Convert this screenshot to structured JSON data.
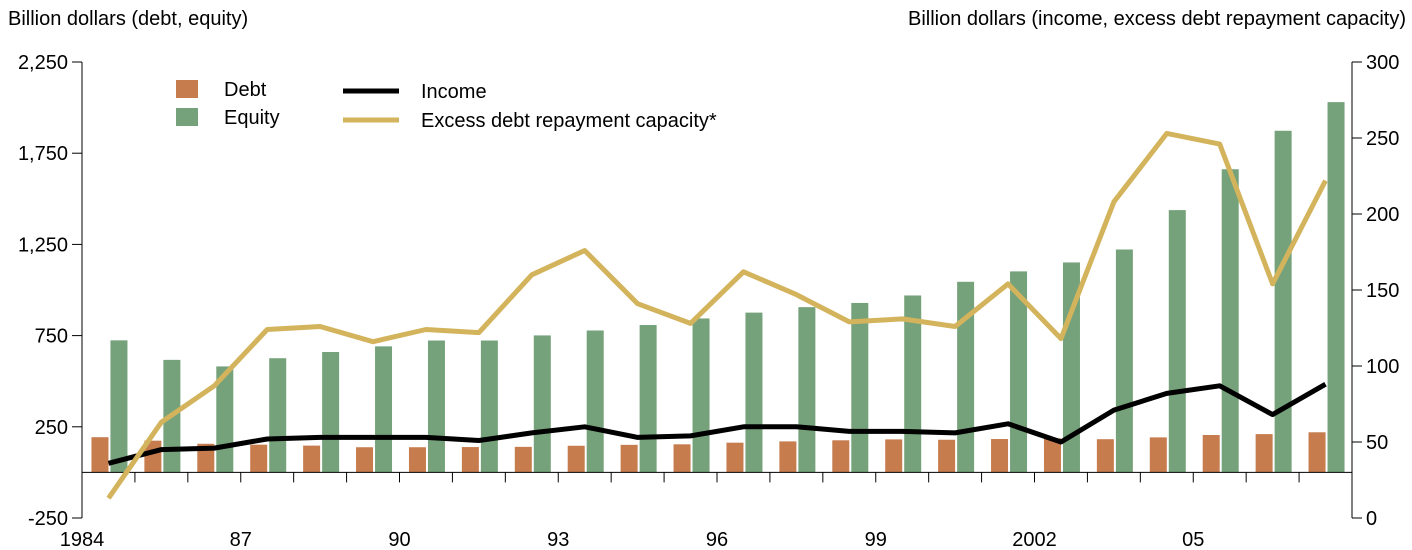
{
  "chart_data": {
    "type": "bar",
    "ylabel_left": "Billion dollars (debt, equity)",
    "ylabel_right": "Billion dollars (income, excess debt repayment capacity)",
    "x": [
      1984,
      1985,
      1986,
      1987,
      1988,
      1989,
      1990,
      1991,
      1992,
      1993,
      1994,
      1995,
      1996,
      1997,
      1998,
      1999,
      2000,
      2001,
      2002,
      2003,
      2004,
      2005,
      2006,
      2007
    ],
    "x_tick_labels": [
      "1984",
      "87",
      "90",
      "93",
      "96",
      "99",
      "2002",
      "05"
    ],
    "x_tick_label_years": [
      1984,
      1987,
      1990,
      1993,
      1996,
      1999,
      2002,
      2005
    ],
    "ylim_left": [
      -250,
      2250
    ],
    "y_ticks_left": [
      -250,
      250,
      750,
      1250,
      1750,
      2250
    ],
    "y_tick_labels_left": [
      "-250",
      "250",
      "750",
      "1,250",
      "1,750",
      "2,250"
    ],
    "ylim_right": [
      0,
      300
    ],
    "y_ticks_right": [
      0,
      50,
      100,
      150,
      200,
      250,
      300
    ],
    "y_tick_labels_right": [
      "0",
      "50",
      "100",
      "150",
      "200",
      "250",
      "300"
    ],
    "series": [
      {
        "name": "Debt",
        "kind": "bar",
        "axis": "left",
        "color": "#c77c4e",
        "values": [
          193,
          174,
          157,
          152,
          147,
          138,
          138,
          139,
          140,
          146,
          151,
          154,
          163,
          170,
          176,
          181,
          179,
          183,
          187,
          182,
          192,
          205,
          210,
          220
        ]
      },
      {
        "name": "Equity",
        "kind": "bar",
        "axis": "left",
        "color": "#75a27a",
        "values": [
          724,
          617,
          581,
          626,
          660,
          691,
          723,
          723,
          751,
          778,
          808,
          844,
          876,
          906,
          929,
          970,
          1045,
          1102,
          1151,
          1222,
          1438,
          1662,
          1873,
          2030
        ]
      },
      {
        "name": "Income",
        "kind": "line",
        "axis": "right",
        "color": "#000000",
        "values": [
          36,
          45,
          46,
          52,
          53,
          53,
          53,
          51,
          56,
          60,
          53,
          54,
          60,
          60,
          57,
          57,
          56,
          62,
          50,
          71,
          82,
          87,
          68,
          88
        ]
      },
      {
        "name": "Excess debt repayment capacity*",
        "kind": "line",
        "axis": "right",
        "color": "#d3b45c",
        "values": [
          13,
          63,
          87,
          124,
          126,
          116,
          124,
          122,
          160,
          176,
          141,
          128,
          162,
          147,
          129,
          131,
          126,
          154,
          118,
          208,
          253,
          246,
          154,
          222
        ]
      }
    ],
    "legend": "top-left",
    "grid": false
  }
}
